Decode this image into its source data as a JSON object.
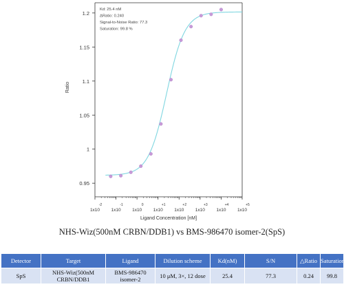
{
  "chart_data": {
    "type": "scatter",
    "xlabel": "Ligand Concentration [nM]",
    "ylabel": "Ratio",
    "x_scale": "log",
    "xlim": [
      0.01,
      100000
    ],
    "ylim": [
      0.93,
      1.215
    ],
    "grid": false,
    "x_ticks": [
      {
        "base": "1x10",
        "exp": "-2"
      },
      {
        "base": "1x10",
        "exp": "-1"
      },
      {
        "base": "1x10",
        "exp": "0"
      },
      {
        "base": "1x10",
        "exp": "+1"
      },
      {
        "base": "1x10",
        "exp": "+2"
      },
      {
        "base": "1x10",
        "exp": "+3"
      },
      {
        "base": "1x10",
        "exp": "+4"
      },
      {
        "base": "1x10",
        "exp": "+5"
      }
    ],
    "y_ticks": [
      "0.95",
      "1",
      "1.05",
      "1.1",
      "1.15",
      "1.2"
    ],
    "y_tick_values": [
      0.95,
      1.0,
      1.05,
      1.1,
      1.15,
      1.2
    ],
    "annotation": [
      "Kd: 25.4 nM",
      "ΔRatio: 0.240",
      "Signal-to-Noise Ratio: 77.3",
      "Saturation: 99.8 %"
    ],
    "points": [
      {
        "x": 0.056,
        "y": 0.96
      },
      {
        "x": 0.17,
        "y": 0.961
      },
      {
        "x": 0.51,
        "y": 0.966
      },
      {
        "x": 1.52,
        "y": 0.975
      },
      {
        "x": 4.57,
        "y": 0.993
      },
      {
        "x": 13.7,
        "y": 1.037
      },
      {
        "x": 41.2,
        "y": 1.102
      },
      {
        "x": 123,
        "y": 1.16
      },
      {
        "x": 370,
        "y": 1.18
      },
      {
        "x": 1110,
        "y": 1.196
      },
      {
        "x": 3330,
        "y": 1.198
      },
      {
        "x": 10000,
        "y": 1.205
      }
    ],
    "fit": {
      "bottom": 0.9615,
      "top": 1.2015,
      "kd": 25.4
    },
    "colors": {
      "points": "#c89ad8",
      "fit": "#7fd6e0",
      "axis": "#333333"
    }
  },
  "caption": "NHS-Wiz(500nM CRBN/DDB1) vs BMS-986470 isomer-2(SpS)",
  "table": {
    "headers": [
      "Detector",
      "Target",
      "Ligand",
      "Dilution scheme",
      "Kd(nM)",
      "S/N",
      "△Ratio",
      "Saturation(%)"
    ],
    "rows": [
      [
        "SpS",
        "NHS-Wiz(500nM CRBN/DDB1",
        "BMS-986470 isomer-2",
        "10 μM, 3×, 12 dose",
        "25.4",
        "77.3",
        "0.24",
        "99.8"
      ]
    ]
  }
}
